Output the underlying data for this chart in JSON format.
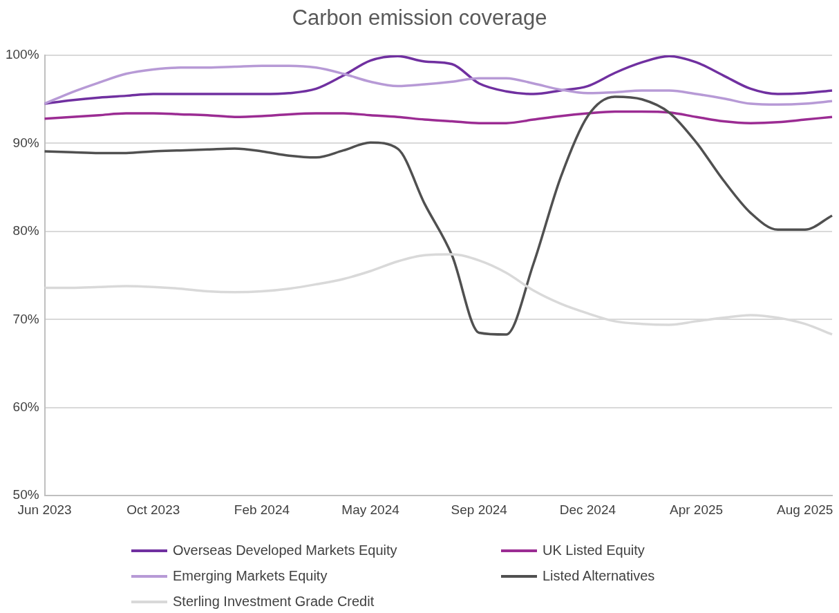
{
  "chart_data": {
    "type": "line",
    "title": "Carbon emission coverage",
    "categories": [
      "Jun 2023",
      null,
      null,
      null,
      "Oct 2023",
      null,
      null,
      null,
      "Feb 2024",
      null,
      null,
      null,
      "May 2024",
      null,
      null,
      null,
      "Sep 2024",
      null,
      null,
      null,
      "Dec 2024",
      null,
      null,
      null,
      "Apr 2025",
      null,
      null,
      null,
      "Aug 2025",
      null
    ],
    "series": [
      {
        "name": "Overseas Developed Markets Equity",
        "color": "#7030a0",
        "values": [
          94.5,
          94.9,
          95.2,
          95.4,
          95.6,
          95.6,
          95.6,
          95.6,
          95.6,
          95.7,
          96.2,
          97.7,
          99.4,
          99.9,
          99.3,
          99.0,
          96.8,
          95.9,
          95.6,
          96.0,
          96.5,
          98.0,
          99.2,
          99.9,
          99.2,
          97.7,
          96.2,
          95.6,
          95.7,
          96.0
        ]
      },
      {
        "name": "UK Listed Equity",
        "color": "#9b2c93",
        "values": [
          92.8,
          93.0,
          93.2,
          93.4,
          93.4,
          93.3,
          93.2,
          93.0,
          93.1,
          93.3,
          93.4,
          93.4,
          93.2,
          93.0,
          92.7,
          92.5,
          92.3,
          92.3,
          92.7,
          93.1,
          93.4,
          93.6,
          93.6,
          93.5,
          93.0,
          92.5,
          92.3,
          92.4,
          92.7,
          93.0
        ]
      },
      {
        "name": "Emerging Markets Equity",
        "color": "#b79ad6",
        "values": [
          94.5,
          95.8,
          96.9,
          97.9,
          98.4,
          98.6,
          98.6,
          98.7,
          98.8,
          98.8,
          98.6,
          97.9,
          97.0,
          96.5,
          96.7,
          97.0,
          97.4,
          97.4,
          96.8,
          96.1,
          95.7,
          95.8,
          96.0,
          96.0,
          95.6,
          95.1,
          94.5,
          94.4,
          94.5,
          94.8
        ]
      },
      {
        "name": "Listed Alternatives",
        "color": "#505050",
        "values": [
          89.1,
          89.0,
          88.9,
          88.9,
          89.1,
          89.2,
          89.3,
          89.4,
          89.1,
          88.6,
          88.4,
          89.2,
          90.1,
          89.4,
          83.1,
          77.3,
          68.5,
          68.3,
          76.3,
          86.1,
          93.1,
          95.3,
          95.0,
          93.5,
          90.1,
          85.8,
          82.1,
          80.2,
          80.2,
          81.8
        ]
      },
      {
        "name": "Sterling Investment Grade Credit",
        "color": "#d9d9d9",
        "values": [
          73.6,
          73.6,
          73.7,
          73.8,
          73.7,
          73.5,
          73.2,
          73.1,
          73.2,
          73.5,
          74.0,
          74.6,
          75.5,
          76.6,
          77.3,
          77.4,
          76.7,
          75.3,
          73.3,
          71.8,
          70.7,
          69.8,
          69.5,
          69.4,
          69.8,
          70.2,
          70.5,
          70.2,
          69.5,
          68.3
        ]
      }
    ],
    "ylim": [
      50,
      100
    ],
    "yticks": [
      {
        "value": 50,
        "label": "50%"
      },
      {
        "value": 60,
        "label": "60%"
      },
      {
        "value": 70,
        "label": "70%"
      },
      {
        "value": 80,
        "label": "80%"
      },
      {
        "value": 90,
        "label": "90%"
      },
      {
        "value": 100,
        "label": "100%"
      }
    ],
    "grid": "y",
    "legend": "bottom",
    "marker": "none",
    "line_style": "solid"
  }
}
